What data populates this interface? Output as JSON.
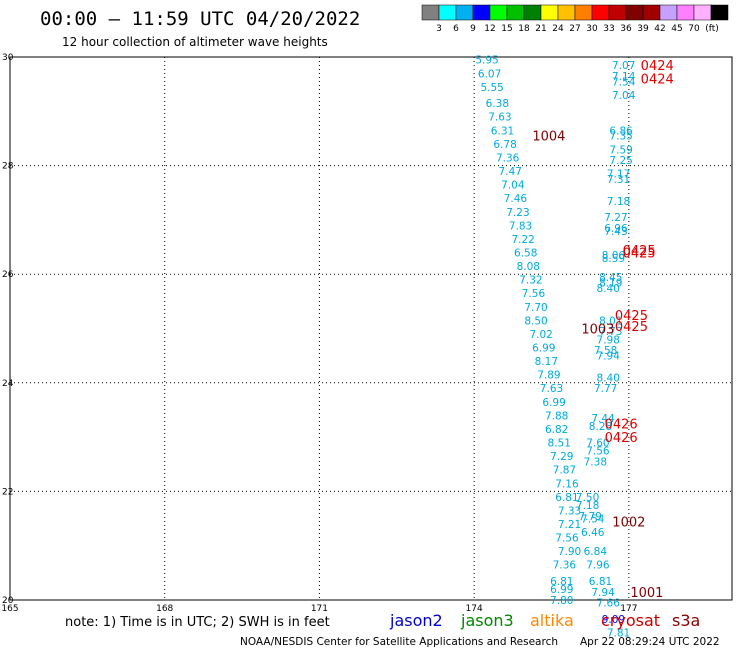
{
  "header": {
    "title": "00:00 – 11:59 UTC 04/20/2022",
    "subtitle": "12 hour collection of altimeter wave heights"
  },
  "colorbar": {
    "colors": [
      "#808080",
      "#00ffff",
      "#00b0f0",
      "#0000ff",
      "#00ff00",
      "#00c000",
      "#008000",
      "#ffff00",
      "#ffc000",
      "#ff8000",
      "#ff0000",
      "#c00000",
      "#800000",
      "#a00000",
      "#c8a0ff",
      "#ff80ff",
      "#ffb0ff",
      "#000000"
    ],
    "labels": [
      "3",
      "6",
      "9",
      "12",
      "15",
      "18",
      "21",
      "24",
      "27",
      "30",
      "33",
      "36",
      "39",
      "42",
      "45",
      "70"
    ],
    "unit": "(ft)"
  },
  "footer": {
    "note": "note: 1) Time is in UTC; 2) SWH is in feet",
    "missions": [
      {
        "name": "jason2",
        "color": "#0000cc"
      },
      {
        "name": "jason3",
        "color": "#008800"
      },
      {
        "name": "altika",
        "color": "#ff8800"
      },
      {
        "name": "cryosat",
        "color": "#cc0000"
      },
      {
        "name": "s3a",
        "color": "#880000"
      }
    ],
    "credit": "NOAA/NESDIS Center for Satellite Applications and Research",
    "timestamp": "Apr 22 08:29:24 UTC 2022"
  },
  "chart_data": {
    "type": "scatter",
    "xlim": [
      165,
      179
    ],
    "ylim": [
      20,
      30
    ],
    "x_ticks": [
      165,
      168,
      171,
      174,
      177
    ],
    "y_ticks": [
      20,
      22,
      24,
      26,
      28,
      30
    ],
    "y_tick_labels": [
      "20",
      "22",
      "24",
      "26",
      "28",
      "30"
    ],
    "grid": true,
    "points": [
      {
        "x": 174.25,
        "y": 29.95,
        "v": "5.95",
        "c": "#00aadd"
      },
      {
        "x": 174.3,
        "y": 29.7,
        "v": "6.07",
        "c": "#00aadd"
      },
      {
        "x": 174.35,
        "y": 29.45,
        "v": "5.55",
        "c": "#00aadd"
      },
      {
        "x": 174.45,
        "y": 29.15,
        "v": "6.38",
        "c": "#00aadd"
      },
      {
        "x": 174.5,
        "y": 28.9,
        "v": "7.63",
        "c": "#00aadd"
      },
      {
        "x": 174.55,
        "y": 28.65,
        "v": "6.31",
        "c": "#00aadd"
      },
      {
        "x": 174.6,
        "y": 28.4,
        "v": "6.78",
        "c": "#00aadd"
      },
      {
        "x": 174.65,
        "y": 28.15,
        "v": "7.36",
        "c": "#00aadd"
      },
      {
        "x": 174.7,
        "y": 27.9,
        "v": "7.47",
        "c": "#00aadd"
      },
      {
        "x": 174.75,
        "y": 27.65,
        "v": "7.04",
        "c": "#00aadd"
      },
      {
        "x": 174.8,
        "y": 27.4,
        "v": "7.46",
        "c": "#00aadd"
      },
      {
        "x": 174.85,
        "y": 27.15,
        "v": "7.23",
        "c": "#00aadd"
      },
      {
        "x": 174.9,
        "y": 26.9,
        "v": "7.83",
        "c": "#00aadd"
      },
      {
        "x": 174.95,
        "y": 26.65,
        "v": "7.22",
        "c": "#00aadd"
      },
      {
        "x": 175.0,
        "y": 26.4,
        "v": "6.58",
        "c": "#00aadd"
      },
      {
        "x": 175.05,
        "y": 26.15,
        "v": "8.08",
        "c": "#00aadd"
      },
      {
        "x": 175.1,
        "y": 25.9,
        "v": "7.32",
        "c": "#00aadd"
      },
      {
        "x": 175.15,
        "y": 25.65,
        "v": "7.56",
        "c": "#00aadd"
      },
      {
        "x": 175.2,
        "y": 25.4,
        "v": "7.70",
        "c": "#00aadd"
      },
      {
        "x": 175.2,
        "y": 25.15,
        "v": "8.50",
        "c": "#00aadd"
      },
      {
        "x": 175.3,
        "y": 24.9,
        "v": "7.02",
        "c": "#00aadd"
      },
      {
        "x": 175.35,
        "y": 24.65,
        "v": "6.99",
        "c": "#00aadd"
      },
      {
        "x": 175.4,
        "y": 24.4,
        "v": "8.17",
        "c": "#00aadd"
      },
      {
        "x": 175.45,
        "y": 24.15,
        "v": "7.89",
        "c": "#00aadd"
      },
      {
        "x": 175.5,
        "y": 23.9,
        "v": "7.63",
        "c": "#00aadd"
      },
      {
        "x": 175.55,
        "y": 23.65,
        "v": "6.99",
        "c": "#00aadd"
      },
      {
        "x": 175.6,
        "y": 23.4,
        "v": "7.88",
        "c": "#00aadd"
      },
      {
        "x": 175.6,
        "y": 23.15,
        "v": "6.82",
        "c": "#00aadd"
      },
      {
        "x": 175.65,
        "y": 22.9,
        "v": "8.51",
        "c": "#00aadd"
      },
      {
        "x": 175.7,
        "y": 22.65,
        "v": "7.29",
        "c": "#00aadd"
      },
      {
        "x": 175.75,
        "y": 22.4,
        "v": "7.87",
        "c": "#00aadd"
      },
      {
        "x": 175.8,
        "y": 22.15,
        "v": "7.16",
        "c": "#00aadd"
      },
      {
        "x": 175.8,
        "y": 21.9,
        "v": "6.81",
        "c": "#00aadd"
      },
      {
        "x": 175.85,
        "y": 21.65,
        "v": "7.33",
        "c": "#00aadd"
      },
      {
        "x": 175.85,
        "y": 21.4,
        "v": "7.21",
        "c": "#00aadd"
      },
      {
        "x": 175.8,
        "y": 21.15,
        "v": "7.56",
        "c": "#00aadd"
      },
      {
        "x": 175.85,
        "y": 20.9,
        "v": "7.90",
        "c": "#00aadd"
      },
      {
        "x": 175.75,
        "y": 20.65,
        "v": "7.36",
        "c": "#00aadd"
      },
      {
        "x": 175.7,
        "y": 20.35,
        "v": "6.81",
        "c": "#00aadd"
      },
      {
        "x": 175.7,
        "y": 20.2,
        "v": "6.99",
        "c": "#00aadd"
      },
      {
        "x": 175.7,
        "y": 20.0,
        "v": "7.80",
        "c": "#00aadd"
      },
      {
        "x": 176.9,
        "y": 29.85,
        "v": "7.07",
        "c": "#00aadd"
      },
      {
        "x": 176.9,
        "y": 29.65,
        "v": "7.14",
        "c": "#00aadd"
      },
      {
        "x": 176.9,
        "y": 29.55,
        "v": "7.54",
        "c": "#00aadd"
      },
      {
        "x": 176.9,
        "y": 29.3,
        "v": "7.04",
        "c": "#00aadd"
      },
      {
        "x": 176.85,
        "y": 28.65,
        "v": "6.86",
        "c": "#00aadd"
      },
      {
        "x": 176.85,
        "y": 28.55,
        "v": "7.35",
        "c": "#00aadd"
      },
      {
        "x": 176.85,
        "y": 28.3,
        "v": "7.59",
        "c": "#00aadd"
      },
      {
        "x": 176.85,
        "y": 28.1,
        "v": "7.25",
        "c": "#00aadd"
      },
      {
        "x": 176.8,
        "y": 27.85,
        "v": "7.17",
        "c": "#00aadd"
      },
      {
        "x": 176.8,
        "y": 27.75,
        "v": "7.31",
        "c": "#00aadd"
      },
      {
        "x": 176.8,
        "y": 27.35,
        "v": "7.18",
        "c": "#00aadd"
      },
      {
        "x": 176.75,
        "y": 27.05,
        "v": "7.27",
        "c": "#00aadd"
      },
      {
        "x": 176.75,
        "y": 26.85,
        "v": "6.96",
        "c": "#00aadd"
      },
      {
        "x": 176.75,
        "y": 26.8,
        "v": "7.43",
        "c": "#00aadd"
      },
      {
        "x": 176.7,
        "y": 26.35,
        "v": "8.06",
        "c": "#00aadd"
      },
      {
        "x": 176.7,
        "y": 26.3,
        "v": "8.59",
        "c": "#00aadd"
      },
      {
        "x": 176.65,
        "y": 25.95,
        "v": "8.45",
        "c": "#00aadd"
      },
      {
        "x": 176.65,
        "y": 25.85,
        "v": "8.19",
        "c": "#00aadd"
      },
      {
        "x": 176.6,
        "y": 25.75,
        "v": "8.40",
        "c": "#00aadd"
      },
      {
        "x": 176.65,
        "y": 25.15,
        "v": "8.01",
        "c": "#00aadd"
      },
      {
        "x": 176.65,
        "y": 24.95,
        "v": "7.73",
        "c": "#00aadd"
      },
      {
        "x": 176.6,
        "y": 24.8,
        "v": "7.98",
        "c": "#00aadd"
      },
      {
        "x": 176.55,
        "y": 24.6,
        "v": "7.58",
        "c": "#00aadd"
      },
      {
        "x": 176.6,
        "y": 24.5,
        "v": "7.94",
        "c": "#00aadd"
      },
      {
        "x": 176.6,
        "y": 24.1,
        "v": "8.40",
        "c": "#00aadd"
      },
      {
        "x": 176.55,
        "y": 23.9,
        "v": "7.77",
        "c": "#00aadd"
      },
      {
        "x": 176.5,
        "y": 23.35,
        "v": "7.44",
        "c": "#00aadd"
      },
      {
        "x": 176.45,
        "y": 23.2,
        "v": "8.28",
        "c": "#00aadd"
      },
      {
        "x": 176.4,
        "y": 22.9,
        "v": "7.60",
        "c": "#00aadd"
      },
      {
        "x": 176.4,
        "y": 22.75,
        "v": "7.56",
        "c": "#00aadd"
      },
      {
        "x": 176.35,
        "y": 22.55,
        "v": "7.38",
        "c": "#00aadd"
      },
      {
        "x": 176.2,
        "y": 21.9,
        "v": "7.50",
        "c": "#00aadd"
      },
      {
        "x": 176.2,
        "y": 21.75,
        "v": "7.18",
        "c": "#00aadd"
      },
      {
        "x": 176.25,
        "y": 21.55,
        "v": "7.79",
        "c": "#00aadd"
      },
      {
        "x": 176.3,
        "y": 21.5,
        "v": "7.54",
        "c": "#00aadd"
      },
      {
        "x": 176.3,
        "y": 21.25,
        "v": "6.46",
        "c": "#00aadd"
      },
      {
        "x": 176.35,
        "y": 20.9,
        "v": "6.84",
        "c": "#00aadd"
      },
      {
        "x": 176.4,
        "y": 20.65,
        "v": "7.96",
        "c": "#00aadd"
      },
      {
        "x": 176.45,
        "y": 20.35,
        "v": "6.81",
        "c": "#00aadd"
      },
      {
        "x": 176.5,
        "y": 20.15,
        "v": "7.94",
        "c": "#00aadd"
      },
      {
        "x": 176.6,
        "y": 19.95,
        "v": "7.66",
        "c": "#00aadd"
      },
      {
        "x": 176.7,
        "y": 19.65,
        "v": "9.09",
        "c": "#0000ff"
      },
      {
        "x": 176.8,
        "y": 19.4,
        "v": "7.81",
        "c": "#00aadd"
      }
    ],
    "pass_labels": [
      {
        "x": 175.45,
        "y": 28.55,
        "text": "1004",
        "c": "#800000"
      },
      {
        "x": 177.55,
        "y": 29.85,
        "text": "0424",
        "c": "#dd0000"
      },
      {
        "x": 177.55,
        "y": 29.6,
        "text": "0424",
        "c": "#dd0000"
      },
      {
        "x": 177.2,
        "y": 26.45,
        "text": "0425",
        "c": "#dd0000"
      },
      {
        "x": 177.2,
        "y": 26.4,
        "text": "0425",
        "c": "#dd0000"
      },
      {
        "x": 176.4,
        "y": 25.0,
        "text": "1003",
        "c": "#800000"
      },
      {
        "x": 177.05,
        "y": 25.25,
        "text": "0425",
        "c": "#dd0000"
      },
      {
        "x": 177.05,
        "y": 25.05,
        "text": "0425",
        "c": "#dd0000"
      },
      {
        "x": 176.85,
        "y": 23.25,
        "text": "0426",
        "c": "#dd0000"
      },
      {
        "x": 176.85,
        "y": 23.0,
        "text": "0426",
        "c": "#dd0000"
      },
      {
        "x": 177.0,
        "y": 21.45,
        "text": "1002",
        "c": "#800000"
      },
      {
        "x": 177.35,
        "y": 20.15,
        "text": "1001",
        "c": "#800000"
      }
    ]
  }
}
